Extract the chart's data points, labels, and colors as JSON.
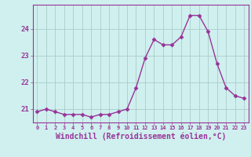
{
  "x": [
    0,
    1,
    2,
    3,
    4,
    5,
    6,
    7,
    8,
    9,
    10,
    11,
    12,
    13,
    14,
    15,
    16,
    17,
    18,
    19,
    20,
    21,
    22,
    23
  ],
  "y": [
    20.9,
    21.0,
    20.9,
    20.8,
    20.8,
    20.8,
    20.7,
    20.8,
    20.8,
    20.9,
    21.0,
    21.8,
    22.9,
    23.6,
    23.4,
    23.4,
    23.7,
    24.5,
    24.5,
    23.9,
    22.7,
    21.8,
    21.5,
    21.4
  ],
  "line_color": "#993399",
  "marker": "D",
  "marker_size": 2.5,
  "linewidth": 1.0,
  "xlabel": "Windchill (Refroidissement éolien,°C)",
  "xlabel_fontsize": 7,
  "xtick_labels": [
    "0",
    "1",
    "2",
    "3",
    "4",
    "5",
    "6",
    "7",
    "8",
    "9",
    "10",
    "11",
    "12",
    "13",
    "14",
    "15",
    "16",
    "17",
    "18",
    "19",
    "20",
    "21",
    "22",
    "23"
  ],
  "ylim": [
    20.5,
    24.9
  ],
  "yticks": [
    21,
    22,
    23,
    24
  ],
  "background_color": "#cff0ee",
  "grid_color": "#aaccc8",
  "spine_color": "#993399"
}
